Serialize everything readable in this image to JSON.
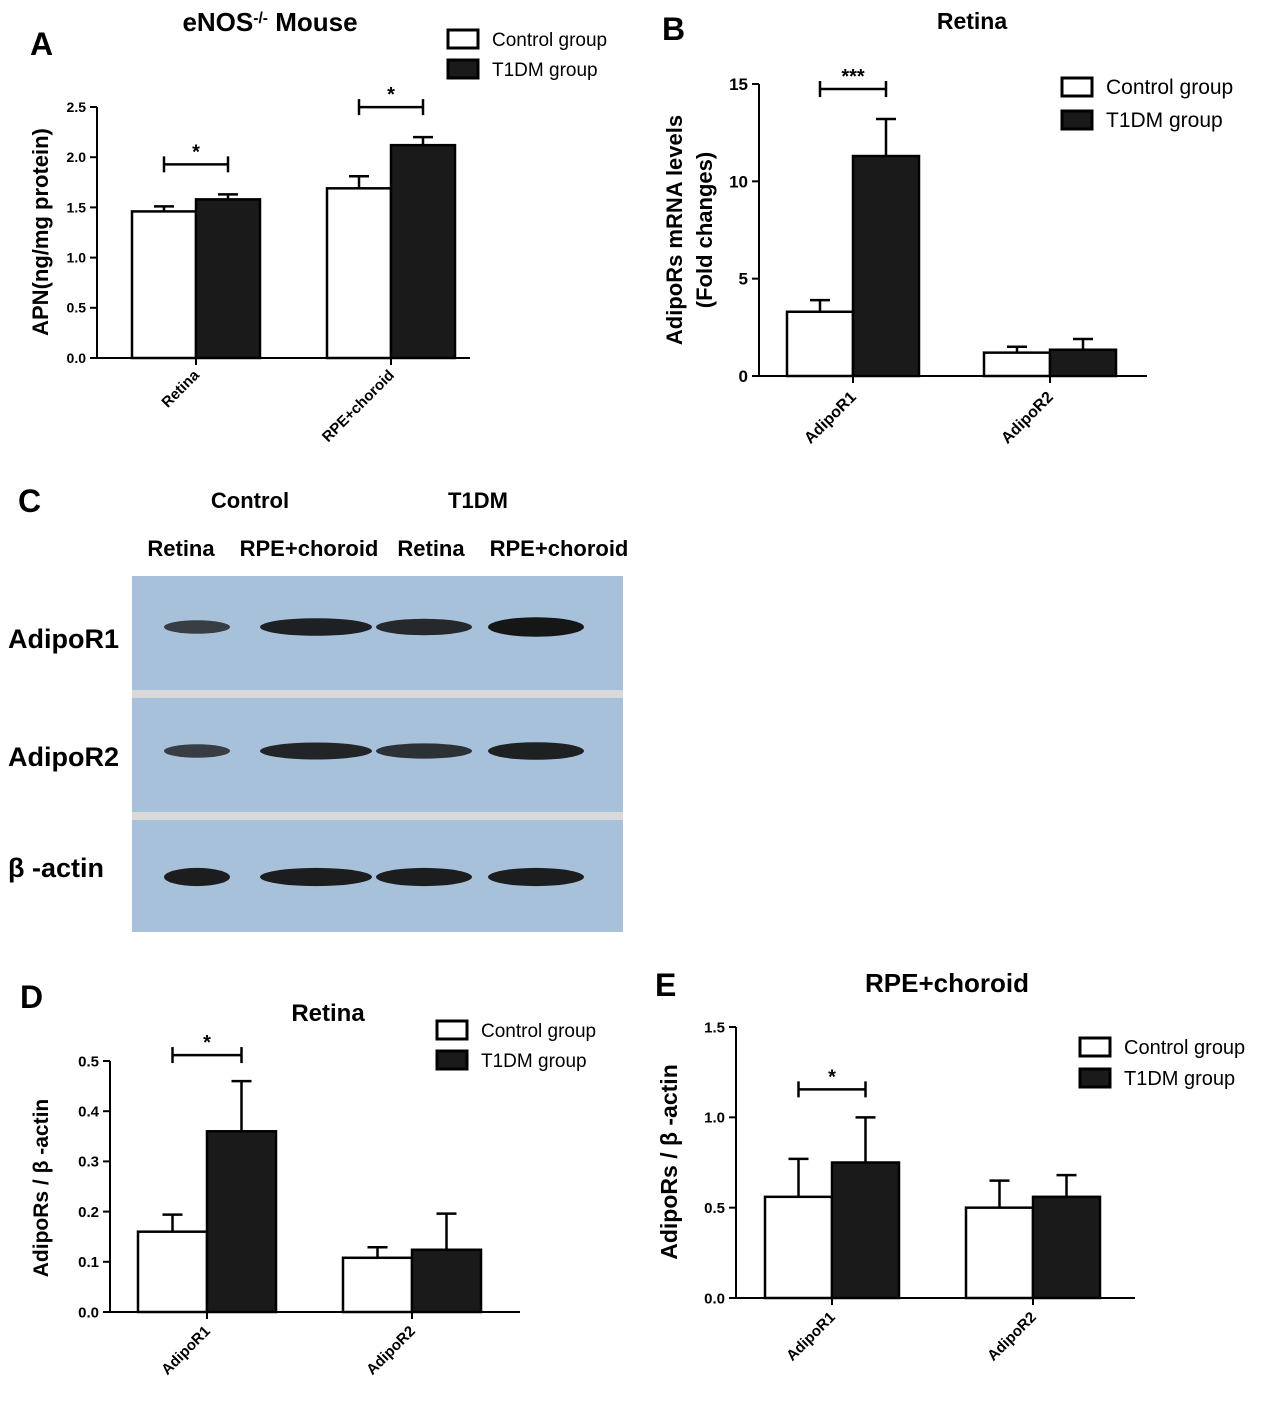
{
  "figure": {
    "colors": {
      "control_fill": "#ffffff",
      "t1dm_fill": "#1a1a1a",
      "stroke": "#000000",
      "blot_bg": "#a8c1db",
      "blot_sep": "#d9d9d9",
      "band": "#111111"
    }
  },
  "chart_data": [
    {
      "id": "A",
      "panel_letter": "A",
      "type": "bar",
      "title": "eNOS",
      "title_sup": "-/-",
      "title_suffix": " Mouse",
      "ylabel": "APN(ng/mg protein)",
      "xlabel": "",
      "ylim": [
        0,
        2.5
      ],
      "yticks": [
        "0.0",
        "0.5",
        "1.0",
        "1.5",
        "2.0",
        "2.5"
      ],
      "categories": [
        "Retina",
        "RPE+choroid"
      ],
      "series": [
        {
          "name": "Control group",
          "values": [
            1.46,
            1.69
          ],
          "errors": [
            0.05,
            0.12
          ]
        },
        {
          "name": "T1DM group",
          "values": [
            1.58,
            2.12
          ],
          "errors": [
            0.05,
            0.08
          ]
        }
      ],
      "significance": [
        {
          "category": 0,
          "label": "*"
        },
        {
          "category": 1,
          "label": "*"
        }
      ],
      "legend": "top-right",
      "grid": false
    },
    {
      "id": "B",
      "panel_letter": "B",
      "type": "bar",
      "title": "Retina",
      "ylabel": "AdipoRs mRNA levels",
      "ylabel2": "(Fold changes)",
      "xlabel": "",
      "ylim": [
        0,
        15
      ],
      "yticks": [
        "0",
        "5",
        "10",
        "15"
      ],
      "categories": [
        "AdipoR1",
        "AdipoR2"
      ],
      "series": [
        {
          "name": "Control group",
          "values": [
            3.3,
            1.2
          ],
          "errors": [
            0.6,
            0.3
          ]
        },
        {
          "name": "T1DM group",
          "values": [
            11.3,
            1.35
          ],
          "errors": [
            1.9,
            0.55
          ]
        }
      ],
      "significance": [
        {
          "category": 0,
          "label": "***"
        }
      ],
      "legend": "top-right",
      "grid": false
    },
    {
      "id": "D",
      "panel_letter": "D",
      "type": "bar",
      "title": "Retina",
      "ylabel": "AdipoRs / β -actin",
      "xlabel": "",
      "ylim": [
        0,
        0.5
      ],
      "yticks": [
        "0.0",
        "0.1",
        "0.2",
        "0.3",
        "0.4",
        "0.5"
      ],
      "categories": [
        "AdipoR1",
        "AdipoR2"
      ],
      "series": [
        {
          "name": "Control group",
          "values": [
            0.16,
            0.108
          ],
          "errors": [
            0.034,
            0.021
          ]
        },
        {
          "name": "T1DM group",
          "values": [
            0.36,
            0.124
          ],
          "errors": [
            0.1,
            0.072
          ]
        }
      ],
      "significance": [
        {
          "category": 0,
          "label": "*"
        }
      ],
      "legend": "top-right",
      "grid": false
    },
    {
      "id": "E",
      "panel_letter": "E",
      "type": "bar",
      "title": "RPE+choroid",
      "ylabel": "AdipoRs / β -actin",
      "xlabel": "",
      "ylim": [
        0,
        1.5
      ],
      "yticks": [
        "0.0",
        "0.5",
        "1.0",
        "1.5"
      ],
      "categories": [
        "AdipoR1",
        "AdipoR2"
      ],
      "series": [
        {
          "name": "Control group",
          "values": [
            0.56,
            0.5
          ],
          "errors": [
            0.21,
            0.15
          ]
        },
        {
          "name": "T1DM group",
          "values": [
            0.75,
            0.56
          ],
          "errors": [
            0.25,
            0.12
          ]
        }
      ],
      "significance": [
        {
          "category": 0,
          "label": "*"
        }
      ],
      "legend": "top-right",
      "grid": false
    }
  ],
  "blot": {
    "panel_letter": "C",
    "groups": [
      "Control",
      "T1DM"
    ],
    "lanes": [
      "Retina",
      "RPE+choroid",
      "Retina",
      "RPE+choroid"
    ],
    "rows": [
      {
        "label": "AdipoR1",
        "intensity": [
          0.45,
          0.8,
          0.7,
          0.95
        ]
      },
      {
        "label": "AdipoR2",
        "intensity": [
          0.45,
          0.75,
          0.6,
          0.8
        ]
      },
      {
        "label": "β -actin",
        "intensity": [
          0.85,
          0.85,
          0.85,
          0.85
        ]
      }
    ]
  }
}
